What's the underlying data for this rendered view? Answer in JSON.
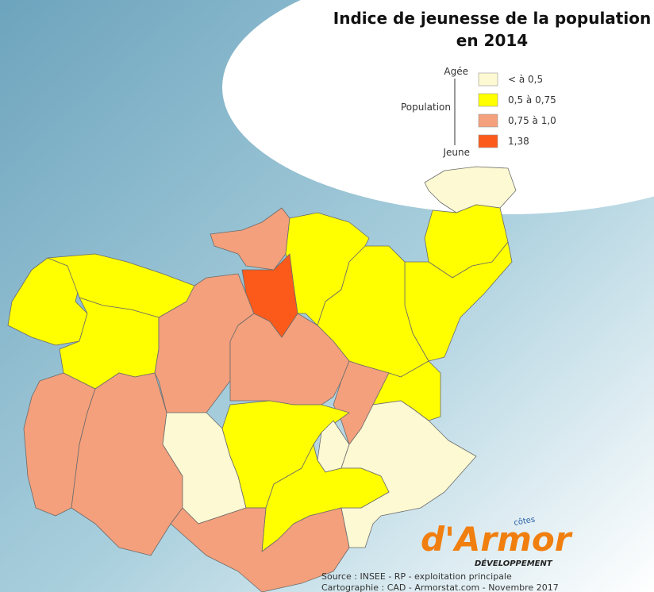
{
  "title": [
    "Indice de jeunesse de la population",
    "en 2014"
  ],
  "legend": {
    "axis_top": "Agée",
    "axis_label": "Population",
    "axis_bottom": "Jeune",
    "items": [
      {
        "label": "< à 0,5",
        "color": "#fdf9d2"
      },
      {
        "label": "0,5 à 0,75",
        "color": "#ffff00"
      },
      {
        "label": "0,75 à 1,0",
        "color": "#f4a07c"
      },
      {
        "label": "1,38",
        "color": "#fb5a1b"
      }
    ]
  },
  "logo": {
    "small": "côtes",
    "main": "d'Armor",
    "sub": "DÉVELOPPEMENT"
  },
  "source": [
    "Source : INSEE - RP - exploitation principale",
    "Cartographie : CAD - Armorstat.com - Novembre 2017"
  ]
}
